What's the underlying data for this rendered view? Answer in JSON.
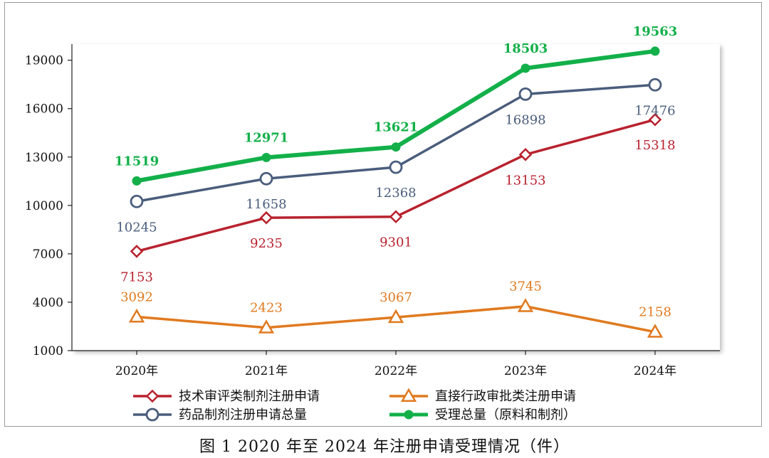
{
  "caption": "图 1   2020 年至 2024 年注册申请受理情况（件）",
  "chart_data": {
    "type": "line",
    "categories": [
      "2020年",
      "2021年",
      "2022年",
      "2023年",
      "2024年"
    ],
    "ylim": [
      1000,
      20000
    ],
    "yticks": [
      1000,
      4000,
      7000,
      10000,
      13000,
      16000,
      19000
    ],
    "grid": false,
    "legend_position": "bottom",
    "series": [
      {
        "key": "tech",
        "name": "技术审评类制剂注册申请",
        "color": "#b8222e",
        "marker": "diamond",
        "values": [
          7153,
          9235,
          9301,
          13153,
          15318
        ],
        "label_pos": [
          "below",
          "below",
          "below",
          "below",
          "below"
        ],
        "bold": false
      },
      {
        "key": "admin",
        "name": "直接行政审批类注册申请",
        "color": "#e07a1f",
        "marker": "triangle",
        "values": [
          3092,
          2423,
          3067,
          3745,
          2158
        ],
        "label_pos": [
          "above",
          "above",
          "above",
          "above",
          "above"
        ],
        "bold": false
      },
      {
        "key": "drug",
        "name": "药品制剂注册申请总量",
        "color": "#4a5d7c",
        "marker": "circle",
        "values": [
          10245,
          11658,
          12368,
          16898,
          17476
        ],
        "label_pos": [
          "below",
          "below",
          "below",
          "below",
          "below"
        ],
        "bold": false
      },
      {
        "key": "total",
        "name": "受理总量（原料和制剂）",
        "color": "#13b04a",
        "marker": "dot",
        "values": [
          11519,
          12971,
          13621,
          18503,
          19563
        ],
        "label_pos": [
          "above",
          "above",
          "above",
          "above",
          "above"
        ],
        "bold": true
      }
    ]
  }
}
